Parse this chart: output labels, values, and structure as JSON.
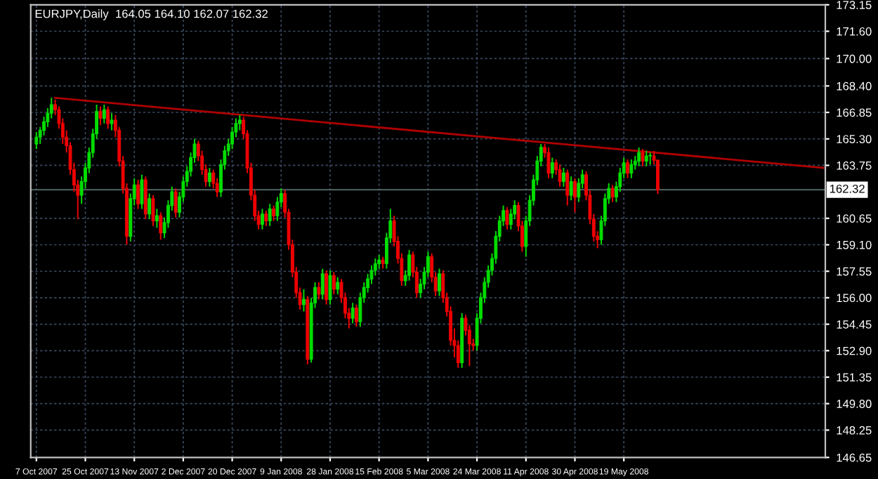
{
  "chart_data": {
    "type": "candlestick",
    "title": "EURJPY,Daily  164.05 164.10 162.07 162.32",
    "categories": [
      "7 Oct 2007",
      null,
      null,
      null,
      null,
      null,
      null,
      null,
      null,
      null,
      null,
      null,
      null,
      "25 Oct 2007",
      null,
      null,
      null,
      null,
      null,
      null,
      null,
      null,
      null,
      null,
      null,
      null,
      "13 Nov 2007",
      null,
      null,
      null,
      null,
      null,
      null,
      null,
      null,
      null,
      null,
      null,
      null,
      "2 Dec 2007",
      null,
      null,
      null,
      null,
      null,
      null,
      null,
      null,
      null,
      null,
      null,
      null,
      "20 Dec 2007",
      null,
      null,
      null,
      null,
      null,
      null,
      null,
      null,
      null,
      null,
      null,
      null,
      "9 Jan 2008",
      null,
      null,
      null,
      null,
      null,
      null,
      null,
      null,
      null,
      null,
      null,
      null,
      "28 Jan 2008",
      null,
      null,
      null,
      null,
      null,
      null,
      null,
      null,
      null,
      null,
      null,
      null,
      "15 Feb 2008",
      null,
      null,
      null,
      null,
      null,
      null,
      null,
      null,
      null,
      null,
      null,
      null,
      "5 Mar 2008",
      null,
      null,
      null,
      null,
      null,
      null,
      null,
      null,
      null,
      null,
      null,
      null,
      "24 Mar 2008",
      null,
      null,
      null,
      null,
      null,
      null,
      null,
      null,
      null,
      null,
      null,
      null,
      "11 Apr 2008",
      null,
      null,
      null,
      null,
      null,
      null,
      null,
      null,
      null,
      null,
      null,
      null,
      "30 Apr 2008",
      null,
      null,
      null,
      null,
      null,
      null,
      null,
      null,
      null,
      null,
      null,
      null,
      "19 May 2008",
      null,
      null,
      null,
      null,
      null,
      null,
      null,
      null,
      null,
      null,
      null,
      null,
      null,
      null,
      null,
      null,
      null,
      null,
      null,
      null,
      null,
      null,
      null,
      null,
      null,
      null,
      null,
      null,
      null,
      null,
      null,
      null,
      null,
      null,
      null,
      null,
      null,
      null,
      null,
      null,
      null,
      null,
      null,
      null,
      null,
      null,
      null,
      null,
      null,
      null,
      null,
      null,
      null
    ],
    "ohlc": [
      [
        165.0,
        165.7,
        164.7,
        165.4
      ],
      [
        165.4,
        166.0,
        165.0,
        165.8
      ],
      [
        165.8,
        166.6,
        165.5,
        166.3
      ],
      [
        166.3,
        167.1,
        166.0,
        166.8
      ],
      [
        166.8,
        167.7,
        166.5,
        167.3
      ],
      [
        167.3,
        167.6,
        166.7,
        167.0
      ],
      [
        167.0,
        167.2,
        165.9,
        166.2
      ],
      [
        166.2,
        166.5,
        165.0,
        165.4
      ],
      [
        165.4,
        165.8,
        164.5,
        164.9
      ],
      [
        164.9,
        165.1,
        163.2,
        163.5
      ],
      [
        163.5,
        163.9,
        162.2,
        162.6
      ],
      [
        162.6,
        162.9,
        160.6,
        162.0
      ],
      [
        162.0,
        163.1,
        161.5,
        162.8
      ],
      [
        162.8,
        163.9,
        162.4,
        163.6
      ],
      [
        163.6,
        164.8,
        163.3,
        164.5
      ],
      [
        164.5,
        165.9,
        164.2,
        165.6
      ],
      [
        165.6,
        167.3,
        165.3,
        166.9
      ],
      [
        166.9,
        167.2,
        166.1,
        166.5
      ],
      [
        166.5,
        167.3,
        166.2,
        167.0
      ],
      [
        167.0,
        167.2,
        165.9,
        166.2
      ],
      [
        166.2,
        166.8,
        165.8,
        166.4
      ],
      [
        166.4,
        166.7,
        165.4,
        165.8
      ],
      [
        165.8,
        166.0,
        163.7,
        164.0
      ],
      [
        164.0,
        164.3,
        162.1,
        162.4
      ],
      [
        162.4,
        162.7,
        159.1,
        159.6
      ],
      [
        159.6,
        162.1,
        159.3,
        161.8
      ],
      [
        161.8,
        163.0,
        161.4,
        162.6
      ],
      [
        162.6,
        162.9,
        161.2,
        161.5
      ],
      [
        161.5,
        163.2,
        161.2,
        162.9
      ],
      [
        162.9,
        163.1,
        160.6,
        160.9
      ],
      [
        160.9,
        162.1,
        160.6,
        161.8
      ],
      [
        161.8,
        162.0,
        160.2,
        160.5
      ],
      [
        160.5,
        161.2,
        160.1,
        160.8
      ],
      [
        160.8,
        161.0,
        159.4,
        159.8
      ],
      [
        159.8,
        160.7,
        159.5,
        160.4
      ],
      [
        160.4,
        161.7,
        160.1,
        161.4
      ],
      [
        161.4,
        162.5,
        161.1,
        162.2
      ],
      [
        162.2,
        162.4,
        160.7,
        161.0
      ],
      [
        161.0,
        162.2,
        160.7,
        161.9
      ],
      [
        161.9,
        163.1,
        161.6,
        162.8
      ],
      [
        162.8,
        163.7,
        162.5,
        163.4
      ],
      [
        163.4,
        164.5,
        163.1,
        164.2
      ],
      [
        164.2,
        165.3,
        163.9,
        165.0
      ],
      [
        165.0,
        165.2,
        164.0,
        164.3
      ],
      [
        164.3,
        164.6,
        163.2,
        163.5
      ],
      [
        163.5,
        163.8,
        162.5,
        162.8
      ],
      [
        162.8,
        163.6,
        162.5,
        163.3
      ],
      [
        163.3,
        163.5,
        162.4,
        162.7
      ],
      [
        162.7,
        163.0,
        161.9,
        162.2
      ],
      [
        162.2,
        164.1,
        161.9,
        163.8
      ],
      [
        163.8,
        164.9,
        163.5,
        164.6
      ],
      [
        164.6,
        165.3,
        164.3,
        165.0
      ],
      [
        165.0,
        166.0,
        164.7,
        165.7
      ],
      [
        165.7,
        166.5,
        165.4,
        166.2
      ],
      [
        166.2,
        166.7,
        165.8,
        166.4
      ],
      [
        166.4,
        166.6,
        165.3,
        165.6
      ],
      [
        165.6,
        165.8,
        163.3,
        163.6
      ],
      [
        163.6,
        163.9,
        161.7,
        162.0
      ],
      [
        162.0,
        162.3,
        160.5,
        160.8
      ],
      [
        160.8,
        161.1,
        160.0,
        160.3
      ],
      [
        160.3,
        161.2,
        160.0,
        160.9
      ],
      [
        160.9,
        161.1,
        160.2,
        160.5
      ],
      [
        160.5,
        161.5,
        160.2,
        161.2
      ],
      [
        161.2,
        161.4,
        160.5,
        160.8
      ],
      [
        160.8,
        161.9,
        160.5,
        161.6
      ],
      [
        161.6,
        162.4,
        161.3,
        162.1
      ],
      [
        162.1,
        162.3,
        160.7,
        161.0
      ],
      [
        161.0,
        161.2,
        158.8,
        159.1
      ],
      [
        159.1,
        159.4,
        157.2,
        157.5
      ],
      [
        157.5,
        157.8,
        156.0,
        156.3
      ],
      [
        156.3,
        156.6,
        155.3,
        155.6
      ],
      [
        155.6,
        156.5,
        155.2,
        155.9
      ],
      [
        155.9,
        156.1,
        152.1,
        152.4
      ],
      [
        152.4,
        156.0,
        152.2,
        155.7
      ],
      [
        155.7,
        156.9,
        155.4,
        156.6
      ],
      [
        156.6,
        156.9,
        155.9,
        156.2
      ],
      [
        156.2,
        157.7,
        155.9,
        157.4
      ],
      [
        157.4,
        157.6,
        155.6,
        155.9
      ],
      [
        155.9,
        157.6,
        155.6,
        157.3
      ],
      [
        157.3,
        157.5,
        156.2,
        156.5
      ],
      [
        156.5,
        157.2,
        156.2,
        156.9
      ],
      [
        156.9,
        157.1,
        155.7,
        156.0
      ],
      [
        156.0,
        156.3,
        154.8,
        155.1
      ],
      [
        155.1,
        155.4,
        154.2,
        154.8
      ],
      [
        154.8,
        155.7,
        154.5,
        155.4
      ],
      [
        155.4,
        155.6,
        154.3,
        154.6
      ],
      [
        154.6,
        156.3,
        154.3,
        156.0
      ],
      [
        156.0,
        156.9,
        155.7,
        156.6
      ],
      [
        156.6,
        157.4,
        156.3,
        157.1
      ],
      [
        157.1,
        157.9,
        156.8,
        157.6
      ],
      [
        157.6,
        158.3,
        157.3,
        158.0
      ],
      [
        158.0,
        158.5,
        157.7,
        158.2
      ],
      [
        158.2,
        158.4,
        157.7,
        158.0
      ],
      [
        158.0,
        159.8,
        157.7,
        159.5
      ],
      [
        159.5,
        161.2,
        159.2,
        160.5
      ],
      [
        160.5,
        160.8,
        159.0,
        159.3
      ],
      [
        159.3,
        159.6,
        158.0,
        158.3
      ],
      [
        158.3,
        158.6,
        156.7,
        157.0
      ],
      [
        157.0,
        157.6,
        156.7,
        157.3
      ],
      [
        157.3,
        158.8,
        157.0,
        158.5
      ],
      [
        158.5,
        158.7,
        157.2,
        157.5
      ],
      [
        157.5,
        157.8,
        156.0,
        156.3
      ],
      [
        156.3,
        157.1,
        156.0,
        156.8
      ],
      [
        156.8,
        157.8,
        156.5,
        157.5
      ],
      [
        157.5,
        158.7,
        157.2,
        158.4
      ],
      [
        158.4,
        158.6,
        156.9,
        157.2
      ],
      [
        157.2,
        157.5,
        156.1,
        156.4
      ],
      [
        156.4,
        157.7,
        156.1,
        157.4
      ],
      [
        157.4,
        157.6,
        155.7,
        156.0
      ],
      [
        156.0,
        156.3,
        154.9,
        155.2
      ],
      [
        155.2,
        155.5,
        153.2,
        153.5
      ],
      [
        153.5,
        154.2,
        152.5,
        153.2
      ],
      [
        153.2,
        153.5,
        151.9,
        152.2
      ],
      [
        152.2,
        155.1,
        151.9,
        154.8
      ],
      [
        154.8,
        155.0,
        153.8,
        154.1
      ],
      [
        154.1,
        154.4,
        152.0,
        153.3
      ],
      [
        153.3,
        153.6,
        152.9,
        153.2
      ],
      [
        153.2,
        155.1,
        152.9,
        154.8
      ],
      [
        154.8,
        156.3,
        154.5,
        156.0
      ],
      [
        156.0,
        157.2,
        155.7,
        156.9
      ],
      [
        156.9,
        157.9,
        156.6,
        157.6
      ],
      [
        157.6,
        158.6,
        157.3,
        158.3
      ],
      [
        158.3,
        159.9,
        158.0,
        159.6
      ],
      [
        159.6,
        160.8,
        159.3,
        160.5
      ],
      [
        160.5,
        161.4,
        160.2,
        161.1
      ],
      [
        161.1,
        161.3,
        160.0,
        160.3
      ],
      [
        160.3,
        161.2,
        160.0,
        160.9
      ],
      [
        160.9,
        161.7,
        160.6,
        161.4
      ],
      [
        161.4,
        161.6,
        159.9,
        160.2
      ],
      [
        160.2,
        160.5,
        158.7,
        159.0
      ],
      [
        159.0,
        160.8,
        158.4,
        160.5
      ],
      [
        160.5,
        162.0,
        160.2,
        161.7
      ],
      [
        161.7,
        163.2,
        161.4,
        162.9
      ],
      [
        162.9,
        164.3,
        162.6,
        164.0
      ],
      [
        164.0,
        165.0,
        163.7,
        164.8
      ],
      [
        164.8,
        165.0,
        164.2,
        164.5
      ],
      [
        164.5,
        164.8,
        163.0,
        163.3
      ],
      [
        163.3,
        164.2,
        163.0,
        163.9
      ],
      [
        163.9,
        164.1,
        163.2,
        163.5
      ],
      [
        163.5,
        163.8,
        162.5,
        162.8
      ],
      [
        162.8,
        163.6,
        162.5,
        163.3
      ],
      [
        163.3,
        163.5,
        161.4,
        162.0
      ],
      [
        162.0,
        163.1,
        161.7,
        162.8
      ],
      [
        162.8,
        163.0,
        161.0,
        161.9
      ],
      [
        161.9,
        163.0,
        161.6,
        162.7
      ],
      [
        162.7,
        163.5,
        162.4,
        163.2
      ],
      [
        163.2,
        163.4,
        161.7,
        162.0
      ],
      [
        162.0,
        162.3,
        160.3,
        160.6
      ],
      [
        160.6,
        160.9,
        159.3,
        159.6
      ],
      [
        159.6,
        159.9,
        158.9,
        159.4
      ],
      [
        159.4,
        160.8,
        159.1,
        160.5
      ],
      [
        160.5,
        162.1,
        160.2,
        161.8
      ],
      [
        161.8,
        162.7,
        161.5,
        162.4
      ],
      [
        162.4,
        162.6,
        161.6,
        161.9
      ],
      [
        161.9,
        162.8,
        161.6,
        162.5
      ],
      [
        162.5,
        163.6,
        162.2,
        163.3
      ],
      [
        163.3,
        164.2,
        163.0,
        163.9
      ],
      [
        163.9,
        164.1,
        163.0,
        163.3
      ],
      [
        163.3,
        164.1,
        163.0,
        163.8
      ],
      [
        163.8,
        164.3,
        163.5,
        164.0
      ],
      [
        164.0,
        164.8,
        163.7,
        164.5
      ],
      [
        164.5,
        164.7,
        163.7,
        164.0
      ],
      [
        164.0,
        164.6,
        163.7,
        164.3
      ],
      [
        164.3,
        164.5,
        163.8,
        164.3
      ],
      [
        164.3,
        164.6,
        163.8,
        164.05
      ],
      [
        164.05,
        164.1,
        162.07,
        162.32
      ],
      null,
      null,
      null,
      null,
      null,
      null,
      null,
      null,
      null,
      null,
      null,
      null,
      null,
      null,
      null,
      null,
      null,
      null,
      null,
      null,
      null,
      null,
      null,
      null,
      null,
      null,
      null,
      null,
      null,
      null,
      null,
      null,
      null,
      null,
      null,
      null,
      null,
      null,
      null,
      null,
      null,
      null,
      null,
      null
    ],
    "series": [
      {
        "type": "line",
        "color": "#b00000",
        "values": [
          null,
          null,
          null,
          null,
          null,
          167.7,
          null,
          null,
          null,
          null,
          null,
          null,
          null,
          null,
          null,
          null,
          null,
          null,
          null,
          null,
          null,
          null,
          null,
          null,
          null,
          null,
          null,
          null,
          null,
          null,
          null,
          null,
          null,
          null,
          null,
          null,
          null,
          null,
          null,
          null,
          null,
          null,
          null,
          null,
          null,
          null,
          null,
          null,
          null,
          null,
          null,
          null,
          null,
          null,
          null,
          null,
          null,
          null,
          null,
          null,
          null,
          null,
          null,
          null,
          null,
          null,
          null,
          null,
          null,
          null,
          null,
          null,
          null,
          null,
          null,
          null,
          null,
          null,
          null,
          null,
          null,
          null,
          null,
          null,
          null,
          null,
          null,
          null,
          null,
          null,
          null,
          null,
          null,
          null,
          null,
          null,
          null,
          null,
          null,
          null,
          null,
          null,
          null,
          null,
          null,
          null,
          null,
          null,
          null,
          null,
          null,
          null,
          null,
          null,
          null,
          null,
          null,
          null,
          null,
          null,
          null,
          null,
          null,
          null,
          null,
          null,
          null,
          null,
          null,
          null,
          null,
          null,
          null,
          null,
          null,
          null,
          null,
          null,
          null,
          null,
          null,
          null,
          null,
          null,
          null,
          null,
          null,
          null,
          null,
          null,
          null,
          null,
          null,
          null,
          null,
          null,
          null,
          null,
          null,
          null,
          null,
          null,
          null,
          null,
          null,
          null,
          null,
          null,
          null,
          null,
          null,
          null,
          null,
          null,
          null,
          null,
          null,
          null,
          null,
          null,
          null,
          null,
          null,
          null,
          null,
          null,
          null,
          null,
          null,
          null,
          null,
          null,
          null,
          null,
          null,
          null,
          null,
          null,
          null,
          null,
          null,
          null,
          null,
          null,
          null,
          null,
          null,
          null,
          null,
          163.6
        ]
      }
    ],
    "ref_lines": [
      {
        "axis": "y",
        "value": 162.32,
        "label": "162.32",
        "color": "#4a5a5a"
      }
    ],
    "ylim": [
      146.65,
      173.15
    ],
    "yticks": [
      {
        "value": 173.15,
        "label": "173.15"
      },
      {
        "value": 171.6,
        "label": "171.60"
      },
      {
        "value": 170.0,
        "label": "170.00"
      },
      {
        "value": 168.4,
        "label": "168.40"
      },
      {
        "value": 166.85,
        "label": "166.85"
      },
      {
        "value": 165.3,
        "label": "165.30"
      },
      {
        "value": 163.75,
        "label": "163.75"
      },
      {
        "value": 160.65,
        "label": "160.65"
      },
      {
        "value": 159.1,
        "label": "159.10"
      },
      {
        "value": 157.55,
        "label": "157.55"
      },
      {
        "value": 156.0,
        "label": "156.00"
      },
      {
        "value": 154.45,
        "label": "154.45"
      },
      {
        "value": 152.9,
        "label": "152.90"
      },
      {
        "value": 151.35,
        "label": "151.35"
      },
      {
        "value": 149.8,
        "label": "149.80"
      },
      {
        "value": 148.25,
        "label": "148.25"
      },
      {
        "value": 146.65,
        "label": "146.65"
      }
    ],
    "grid": true
  }
}
